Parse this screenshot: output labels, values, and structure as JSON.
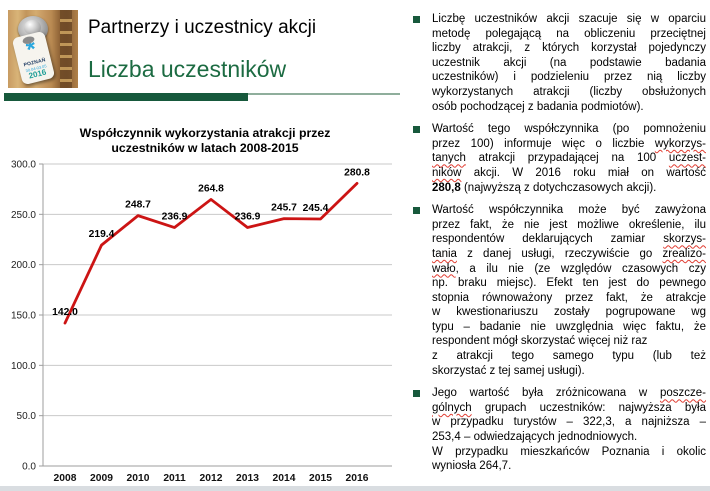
{
  "slide": {
    "title": "Partnerzy i uczestnicy akcji",
    "subtitle": "Liczba uczestników"
  },
  "photo": {
    "asterisk_glyph": "*",
    "tag_lines": [
      "POZNAŃ",
      "30.04-03.05",
      "2016"
    ]
  },
  "colors": {
    "accent_green": "#17593C",
    "subtitle_green": "#1C6B42",
    "line_red": "#CC1414",
    "misspell_red": "#E03C31"
  },
  "chart_data": {
    "type": "line",
    "title": "Współczynnik wykorzystania atrakcji przez uczestników w latach 2008-2015",
    "title_lines": [
      "Współczynnik wykorzystania atrakcji przez",
      "uczestników w latach 2008-2015"
    ],
    "categories": [
      "2008",
      "2009",
      "2010",
      "2011",
      "2012",
      "2013",
      "2014",
      "2015",
      "2016"
    ],
    "values": [
      142.0,
      219.4,
      248.7,
      236.9,
      264.8,
      236.9,
      245.7,
      245.4,
      280.8
    ],
    "point_labels": [
      "142.0",
      "219.4",
      "248.7",
      "236.9",
      "264.8",
      "236.9",
      "245.7",
      "245.4",
      "280.8"
    ],
    "xlabel": "",
    "ylabel": "",
    "ylim": [
      0,
      300
    ],
    "ytick_step": 50,
    "ytick_labels": [
      "0.0",
      "50.0",
      "100.0",
      "150.0",
      "200.0",
      "250.0",
      "300.0"
    ],
    "grid": true,
    "legend_position": "none",
    "line_color": "#CC1414"
  },
  "bullets": [
    {
      "lines": [
        {
          "j": true,
          "seg": [
            {
              "t": "Liczbę uczestników akcji szacuje się w oparciu"
            }
          ]
        },
        {
          "j": true,
          "seg": [
            {
              "t": "metodę polegającą na obliczeniu przeciętnej"
            }
          ]
        },
        {
          "j": true,
          "seg": [
            {
              "t": "liczby atrakcji, z których korzystał pojedynczy"
            }
          ]
        },
        {
          "j": true,
          "seg": [
            {
              "t": "uczestnik akcji (na podstawie badania"
            }
          ]
        },
        {
          "j": true,
          "seg": [
            {
              "t": "uczestników) i podzieleniu przez nią liczby"
            }
          ]
        },
        {
          "j": true,
          "seg": [
            {
              "t": "wykorzystanych atrakcji (liczby obsłużonych"
            }
          ]
        },
        {
          "j": false,
          "seg": [
            {
              "t": "osób pochodzącej z badania podmiotów)."
            }
          ]
        }
      ]
    },
    {
      "lines": [
        {
          "j": true,
          "seg": [
            {
              "t": "Wartość tego współczynnika (po pomnożeniu"
            }
          ]
        },
        {
          "j": true,
          "seg": [
            {
              "t": "przez 100) informuje więc o liczbie "
            },
            {
              "t": "wykorzys-",
              "s": "m"
            }
          ]
        },
        {
          "j": true,
          "seg": [
            {
              "t": "tanych",
              "s": "m"
            },
            {
              "t": " atrakcji przypadającej na 100 "
            },
            {
              "t": "uczest-",
              "s": "m"
            }
          ]
        },
        {
          "j": true,
          "seg": [
            {
              "t": "ników",
              "s": "m"
            },
            {
              "t": " akcji. W 2016 roku miał on wartość"
            }
          ]
        },
        {
          "j": false,
          "seg": [
            {
              "t": "280,8",
              "s": "b"
            },
            {
              "t": " (najwyższą z dotychczasowych akcji)."
            }
          ]
        }
      ]
    },
    {
      "lines": [
        {
          "j": true,
          "seg": [
            {
              "t": "Wartość współczynnika może być zawyżona"
            }
          ]
        },
        {
          "j": true,
          "seg": [
            {
              "t": "przez fakt, że nie jest możliwe określenie, ilu"
            }
          ]
        },
        {
          "j": true,
          "seg": [
            {
              "t": "respondentów deklarujących zamiar "
            },
            {
              "t": "skorzys-",
              "s": "m"
            }
          ]
        },
        {
          "j": true,
          "seg": [
            {
              "t": "tania",
              "s": "m"
            },
            {
              "t": " z danej usługi, rzeczywiście go "
            },
            {
              "t": "zrealizo-",
              "s": "m"
            }
          ]
        },
        {
          "j": true,
          "seg": [
            {
              "t": "wało",
              "s": "m"
            },
            {
              "t": ", a ilu nie (ze względów czasowych czy"
            }
          ]
        },
        {
          "j": true,
          "seg": [
            {
              "t": "np. braku miejsc). Efekt ten jest do pewnego"
            }
          ]
        },
        {
          "j": true,
          "seg": [
            {
              "t": "stopnia równoważony przez fakt, że atrakcje"
            }
          ]
        },
        {
          "j": true,
          "seg": [
            {
              "t": "w kwestionariuszu zostały pogrupowane wg"
            }
          ]
        },
        {
          "j": true,
          "seg": [
            {
              "t": "typu – badanie nie uwzględnia więc faktu, że"
            }
          ]
        },
        {
          "j": false,
          "seg": [
            {
              "t": "respondent mógł skorzystać więcej niż raz"
            }
          ]
        },
        {
          "j": true,
          "seg": [
            {
              "t": "z atrakcji tego samego typu (lub też"
            }
          ]
        },
        {
          "j": false,
          "seg": [
            {
              "t": "skorzystać z tej samej usługi)."
            }
          ]
        }
      ]
    },
    {
      "lines": [
        {
          "j": true,
          "seg": [
            {
              "t": "Jego wartość była zróżnicowana w "
            },
            {
              "t": "poszcze-",
              "s": "m"
            }
          ]
        },
        {
          "j": true,
          "seg": [
            {
              "t": "gólnych",
              "s": "m"
            },
            {
              "t": " grupach uczestników: najwyższa była"
            }
          ]
        },
        {
          "j": true,
          "seg": [
            {
              "t": "w przypadku turystów – 322,3, a najniższa –"
            }
          ]
        },
        {
          "j": false,
          "seg": [
            {
              "t": "253,4 – odwiedzających jednodniowych."
            }
          ]
        },
        {
          "j": true,
          "seg": [
            {
              "t": "W przypadku mieszkańców Poznania i okolic"
            }
          ]
        },
        {
          "j": false,
          "seg": [
            {
              "t": "wyniosła 264,7."
            }
          ]
        }
      ]
    }
  ]
}
